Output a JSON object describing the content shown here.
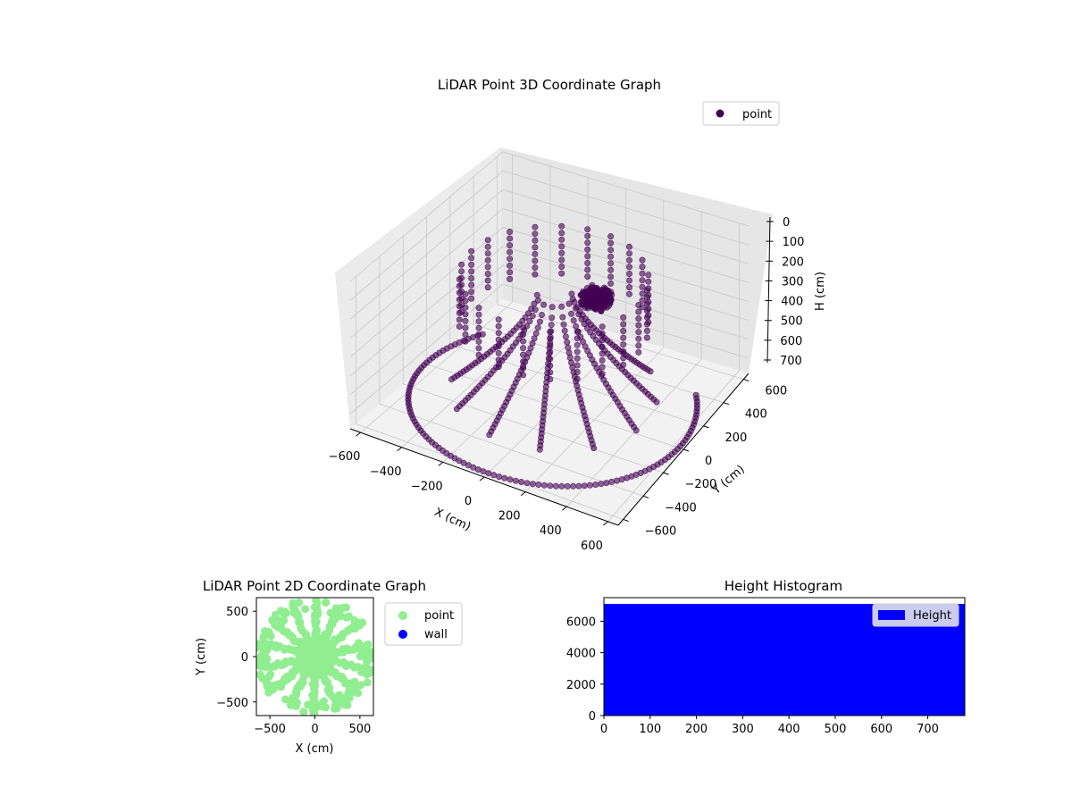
{
  "chart_data": [
    {
      "type": "scatter3d",
      "title": "LiDAR Point 3D Coordinate Graph",
      "xlabel": "X (cm)",
      "ylabel": "Y (cm)",
      "zlabel": "H (cm)",
      "xticks": [
        -600,
        -400,
        -200,
        0,
        200,
        400,
        600
      ],
      "yticks": [
        -600,
        -400,
        -200,
        0,
        200,
        400,
        600
      ],
      "zticks": [
        0,
        100,
        200,
        300,
        400,
        500,
        600,
        700
      ],
      "xlim": [
        -650,
        650
      ],
      "ylim": [
        -650,
        650
      ],
      "zlim": [
        0,
        780
      ],
      "z_inverted": true,
      "grid": true,
      "legend": {
        "entries": [
          "point"
        ],
        "placement": "top-right"
      },
      "series": [
        {
          "name": "point",
          "color": "#440154",
          "point_groups": [
            {
              "kind": "ring",
              "radius_cm": 640,
              "h_cm": 760,
              "angle_from_deg": 150,
              "angle_to_deg": 395,
              "count": 110
            },
            {
              "kind": "dense_cluster",
              "x_cm": 160,
              "y_cm": 90,
              "h_cm": 200,
              "spread_cm": 70,
              "count": 250
            },
            {
              "kind": "spokes",
              "h_from_cm": 200,
              "h_to_cm": 700,
              "count": 8
            },
            {
              "kind": "posts",
              "radius_cm": 420,
              "h_from_cm": 100,
              "h_to_cm": 350,
              "count": 22
            }
          ]
        }
      ]
    },
    {
      "type": "scatter",
      "title": "LiDAR Point 2D Coordinate Graph",
      "xlabel": "X (cm)",
      "ylabel": "Y (cm)",
      "xticks": [
        -500,
        0,
        500
      ],
      "yticks": [
        -500,
        0,
        500
      ],
      "xlim": [
        -650,
        650
      ],
      "ylim": [
        -650,
        650
      ],
      "legend": {
        "entries": [
          "point",
          "wall"
        ],
        "placement": "outside-right"
      },
      "series": [
        {
          "name": "point",
          "color": "#90ee90"
        },
        {
          "name": "wall",
          "color": "#0000ff"
        }
      ]
    },
    {
      "type": "bar",
      "title": "Height Histogram",
      "xticks": [
        0,
        100,
        200,
        300,
        400,
        500,
        600,
        700
      ],
      "yticks": [
        0,
        2000,
        4000,
        6000
      ],
      "xlim": [
        0,
        780
      ],
      "ylim": [
        0,
        7500
      ],
      "bar_height": 7100,
      "bar_range": [
        0,
        780
      ],
      "legend": {
        "entries": [
          "Height"
        ],
        "placement": "top-right"
      },
      "series": [
        {
          "name": "Height",
          "color": "#0000ff"
        }
      ]
    }
  ]
}
